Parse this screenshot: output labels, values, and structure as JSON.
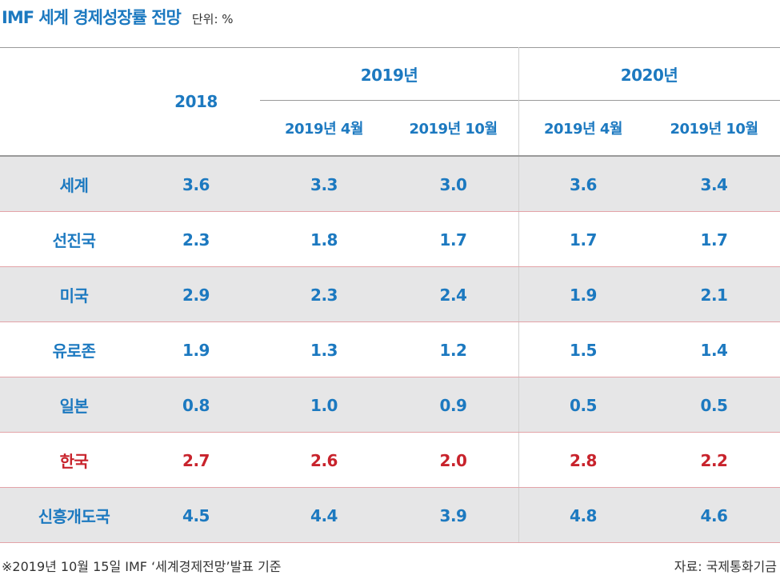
{
  "header": {
    "title": "IMF 세계 경제성장률 전망",
    "unit": "단위: %"
  },
  "table": {
    "col_2018": "2018",
    "group_2019": "2019년",
    "group_2020": "2020년",
    "sub_2019_apr": "2019년 4월",
    "sub_2019_oct": "2019년 10월",
    "sub_2020_apr": "2019년 4월",
    "sub_2020_oct": "2019년 10월"
  },
  "footer": {
    "note": "※2019년 10월 15일 IMF ‘세계경제전망’발표 기준",
    "source": "자료: 국제통화기금"
  },
  "colors": {
    "accent": "#1c79c0",
    "highlight": "#c8232c",
    "shade": "#e6e6e7"
  },
  "chart_data": {
    "type": "table",
    "columns": [
      "2018",
      "2019년 (2019년 4월)",
      "2019년 (2019년 10월)",
      "2020년 (2019년 4월)",
      "2020년 (2019년 10월)"
    ],
    "rows": [
      {
        "label": "세계",
        "values": [
          "3.6",
          "3.3",
          "3.0",
          "3.6",
          "3.4"
        ]
      },
      {
        "label": "선진국",
        "values": [
          "2.3",
          "1.8",
          "1.7",
          "1.7",
          "1.7"
        ]
      },
      {
        "label": "미국",
        "values": [
          "2.9",
          "2.3",
          "2.4",
          "1.9",
          "2.1"
        ]
      },
      {
        "label": "유로존",
        "values": [
          "1.9",
          "1.3",
          "1.2",
          "1.5",
          "1.4"
        ]
      },
      {
        "label": "일본",
        "values": [
          "0.8",
          "1.0",
          "0.9",
          "0.5",
          "0.5"
        ]
      },
      {
        "label": "한국",
        "values": [
          "2.7",
          "2.6",
          "2.0",
          "2.8",
          "2.2"
        ],
        "highlight": true
      },
      {
        "label": "신흥개도국",
        "values": [
          "4.5",
          "4.4",
          "3.9",
          "4.8",
          "4.6"
        ]
      }
    ]
  }
}
